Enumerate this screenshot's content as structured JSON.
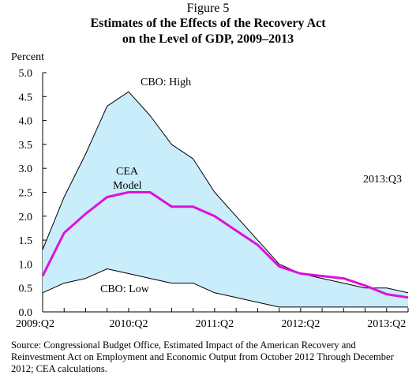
{
  "figure_label": "Figure 5",
  "title_line1": "Estimates of the Effects of the Recovery Act",
  "title_line2": "on the Level of GDP, 2009–2013",
  "source": "Source: Congressional Budget Office, Estimated Impact of the American Recovery and Reinvestment Act on Employment and Economic Output from October 2012 Through December 2012; CEA calculations.",
  "colors": {
    "band_fill": "#c9edfb",
    "cea_line": "#dd11dd",
    "axis": "#000000"
  },
  "chart_data": {
    "type": "area",
    "title": "Estimates of the Effects of the Recovery Act on the Level of GDP, 2009–2013",
    "ylabel": "Percent",
    "xlabel": "",
    "ylim": [
      0,
      5.0
    ],
    "y_ticks": [
      "0.0",
      "0.5",
      "1.0",
      "1.5",
      "2.0",
      "2.5",
      "3.0",
      "3.5",
      "4.0",
      "4.5",
      "5.0"
    ],
    "x": [
      "2009:Q2",
      "2009:Q3",
      "2009:Q4",
      "2010:Q1",
      "2010:Q2",
      "2010:Q3",
      "2010:Q4",
      "2011:Q1",
      "2011:Q2",
      "2011:Q3",
      "2011:Q4",
      "2012:Q1",
      "2012:Q2",
      "2012:Q3",
      "2012:Q4",
      "2013:Q1",
      "2013:Q2",
      "2013:Q3"
    ],
    "x_tick_labels": [
      {
        "label": "2009:Q2",
        "quarter_index": 0
      },
      {
        "label": "2010:Q2",
        "quarter_index": 4
      },
      {
        "label": "2011:Q2",
        "quarter_index": 8
      },
      {
        "label": "2012:Q2",
        "quarter_index": 12
      },
      {
        "label": "2013:Q2",
        "quarter_index": 16
      }
    ],
    "series": [
      {
        "name": "CBO: High",
        "values": [
          1.3,
          2.4,
          3.3,
          4.3,
          4.6,
          4.1,
          3.5,
          3.2,
          2.5,
          2.0,
          1.5,
          1.0,
          0.8,
          0.7,
          0.6,
          0.5,
          0.5,
          0.4
        ]
      },
      {
        "name": "CEA Model",
        "values": [
          0.75,
          1.65,
          2.05,
          2.4,
          2.5,
          2.5,
          2.2,
          2.2,
          2.0,
          1.7,
          1.4,
          0.95,
          0.8,
          0.75,
          0.7,
          0.55,
          0.37,
          0.3
        ]
      },
      {
        "name": "CBO: Low",
        "values": [
          0.4,
          0.6,
          0.7,
          0.9,
          0.8,
          0.7,
          0.6,
          0.6,
          0.4,
          0.3,
          0.2,
          0.1,
          0.1,
          0.1,
          0.1,
          0.1,
          0.1,
          0.1
        ]
      }
    ],
    "annotations": {
      "high": "CBO: High",
      "low": "CBO: Low",
      "cea_line1": "CEA",
      "cea_line2": "Model",
      "last_quarter": "2013:Q3"
    },
    "grid": false
  }
}
